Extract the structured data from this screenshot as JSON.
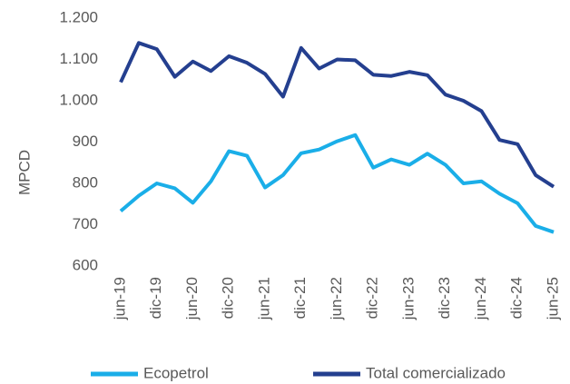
{
  "chart_data": {
    "type": "line",
    "ylabel": "MPCD",
    "categories": [
      "jun-19",
      null,
      "dic-19",
      null,
      "jun-20",
      null,
      "dic-20",
      null,
      "jun-21",
      null,
      "dic-21",
      null,
      "jun-22",
      null,
      "dic-22",
      null,
      "jun-23",
      null,
      "dic-23",
      null,
      "jun-24",
      null,
      "dic-24",
      null,
      "jun-25"
    ],
    "series": [
      {
        "name": "Ecopetrol",
        "color": "#1aaee8",
        "values": [
          733,
          770,
          800,
          788,
          753,
          805,
          878,
          867,
          790,
          820,
          873,
          882,
          902,
          917,
          838,
          858,
          845,
          872,
          845,
          800,
          805,
          775,
          752,
          697,
          682
        ]
      },
      {
        "name": "Total comercializado",
        "color": "#243f8f",
        "values": [
          1045,
          1140,
          1125,
          1058,
          1095,
          1072,
          1108,
          1092,
          1065,
          1010,
          1128,
          1078,
          1100,
          1098,
          1063,
          1060,
          1070,
          1062,
          1015,
          1000,
          975,
          905,
          895,
          820,
          792
        ]
      }
    ],
    "ylim": [
      600,
      1200
    ],
    "yticks": [
      600,
      700,
      800,
      900,
      {
        "value": 1000,
        "label": "1.000"
      },
      {
        "value": 1100,
        "label": "1.100"
      },
      {
        "value": 1200,
        "label": "1.200"
      }
    ],
    "legend": "bottom"
  }
}
